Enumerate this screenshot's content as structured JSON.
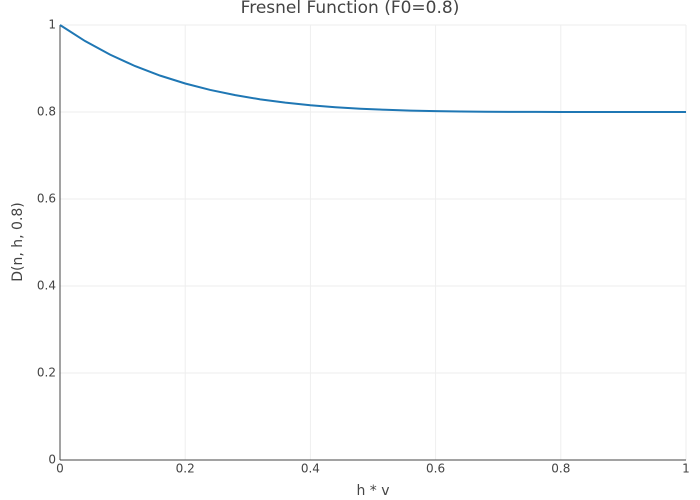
{
  "chart_data": {
    "type": "line",
    "title": "Fresnel Function (F0=0.8)",
    "xlabel": "h * v",
    "ylabel": "D(n, h, 0.8)",
    "x": [
      0,
      0.04,
      0.08,
      0.12,
      0.16,
      0.2,
      0.24,
      0.28,
      0.32,
      0.36,
      0.4,
      0.44,
      0.48,
      0.52,
      0.56,
      0.6,
      0.64,
      0.68,
      0.72,
      0.76,
      0.8,
      0.84,
      0.88,
      0.92,
      0.96,
      1
    ],
    "series": [
      {
        "color": "#1f77b4",
        "values": [
          1,
          0.9631,
          0.9318,
          0.9055,
          0.8836,
          0.8655,
          0.8507,
          0.8387,
          0.8291,
          0.8215,
          0.8156,
          0.811,
          0.8076,
          0.8051,
          0.8033,
          0.802,
          0.8012,
          0.8007,
          0.8003,
          0.8002,
          0.8001,
          0.8,
          0.8,
          0.8,
          0.8,
          0.8
        ]
      }
    ],
    "xlim": [
      0,
      1
    ],
    "ylim": [
      0,
      1
    ],
    "xticks": [
      0,
      0.2,
      0.4,
      0.6,
      0.8,
      1
    ],
    "yticks": [
      0,
      0.2,
      0.4,
      0.6,
      0.8,
      1
    ],
    "grid": true
  }
}
